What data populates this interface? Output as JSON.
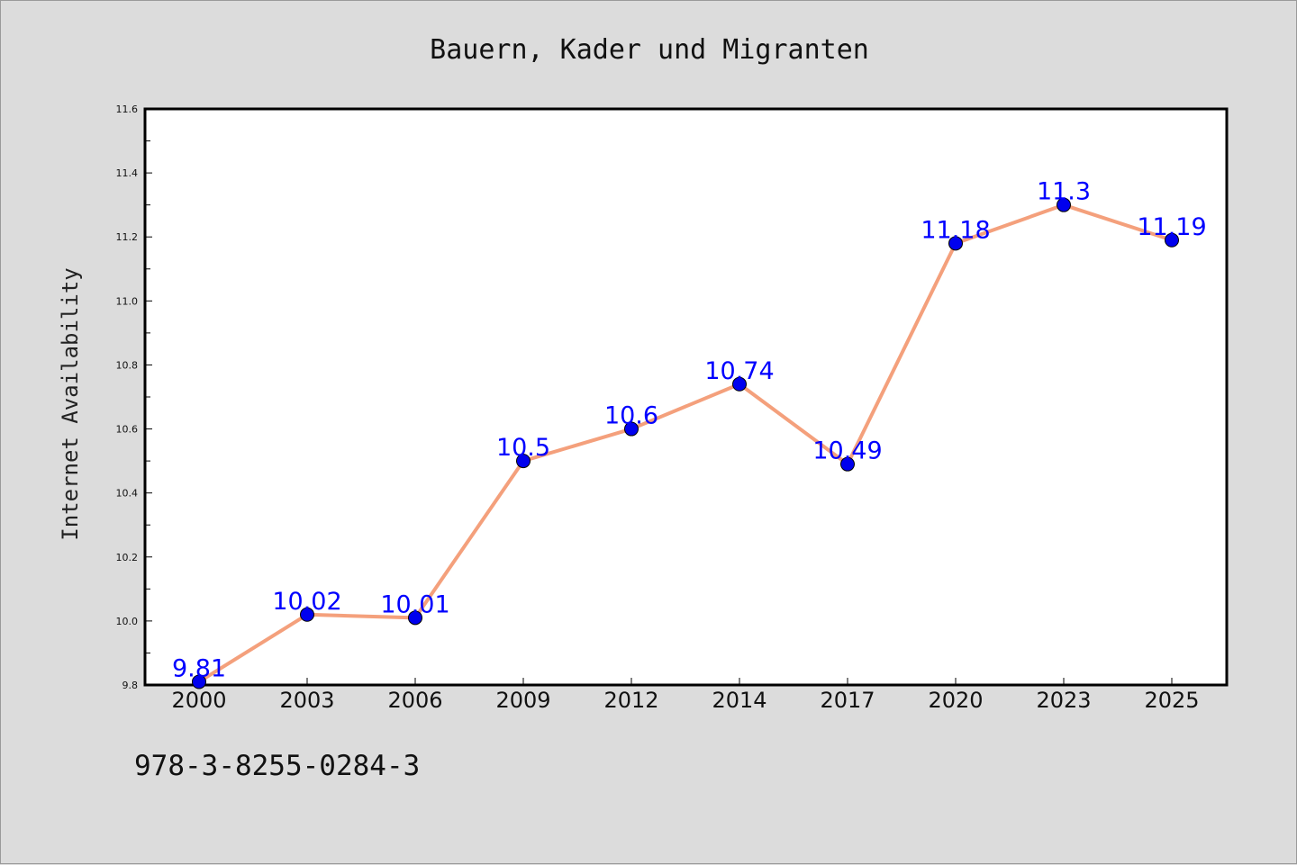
{
  "chart_data": {
    "type": "line",
    "title": "Bauern, Kader und Migranten",
    "xlabel": "",
    "ylabel": "Internet Availability",
    "categories": [
      "2000",
      "2003",
      "2006",
      "2009",
      "2012",
      "2014",
      "2017",
      "2020",
      "2023",
      "2025"
    ],
    "series": [
      {
        "values": [
          9.81,
          10.02,
          10.01,
          10.5,
          10.6,
          10.74,
          10.49,
          11.18,
          11.3,
          11.19
        ]
      }
    ],
    "data_labels": [
      "9.81",
      "10.02",
      "10.01",
      "10.5",
      "10.6",
      "10.74",
      "10.49",
      "11.18",
      "11.3",
      "11.19"
    ],
    "ylim": [
      9.8,
      11.6
    ],
    "yticks": [
      "9.8",
      "10.0",
      "10.2",
      "10.4",
      "10.6",
      "10.8",
      "11.0",
      "11.2",
      "11.4",
      "11.6"
    ],
    "grid": false,
    "legend": "none",
    "colors": {
      "line": "#f4a07c",
      "marker": "#0000ee",
      "label": "#0000ff",
      "background": "#dcdcdc",
      "plot_area": "#ffffff"
    }
  },
  "footer": {
    "isbn": "978-3-8255-0284-3"
  }
}
